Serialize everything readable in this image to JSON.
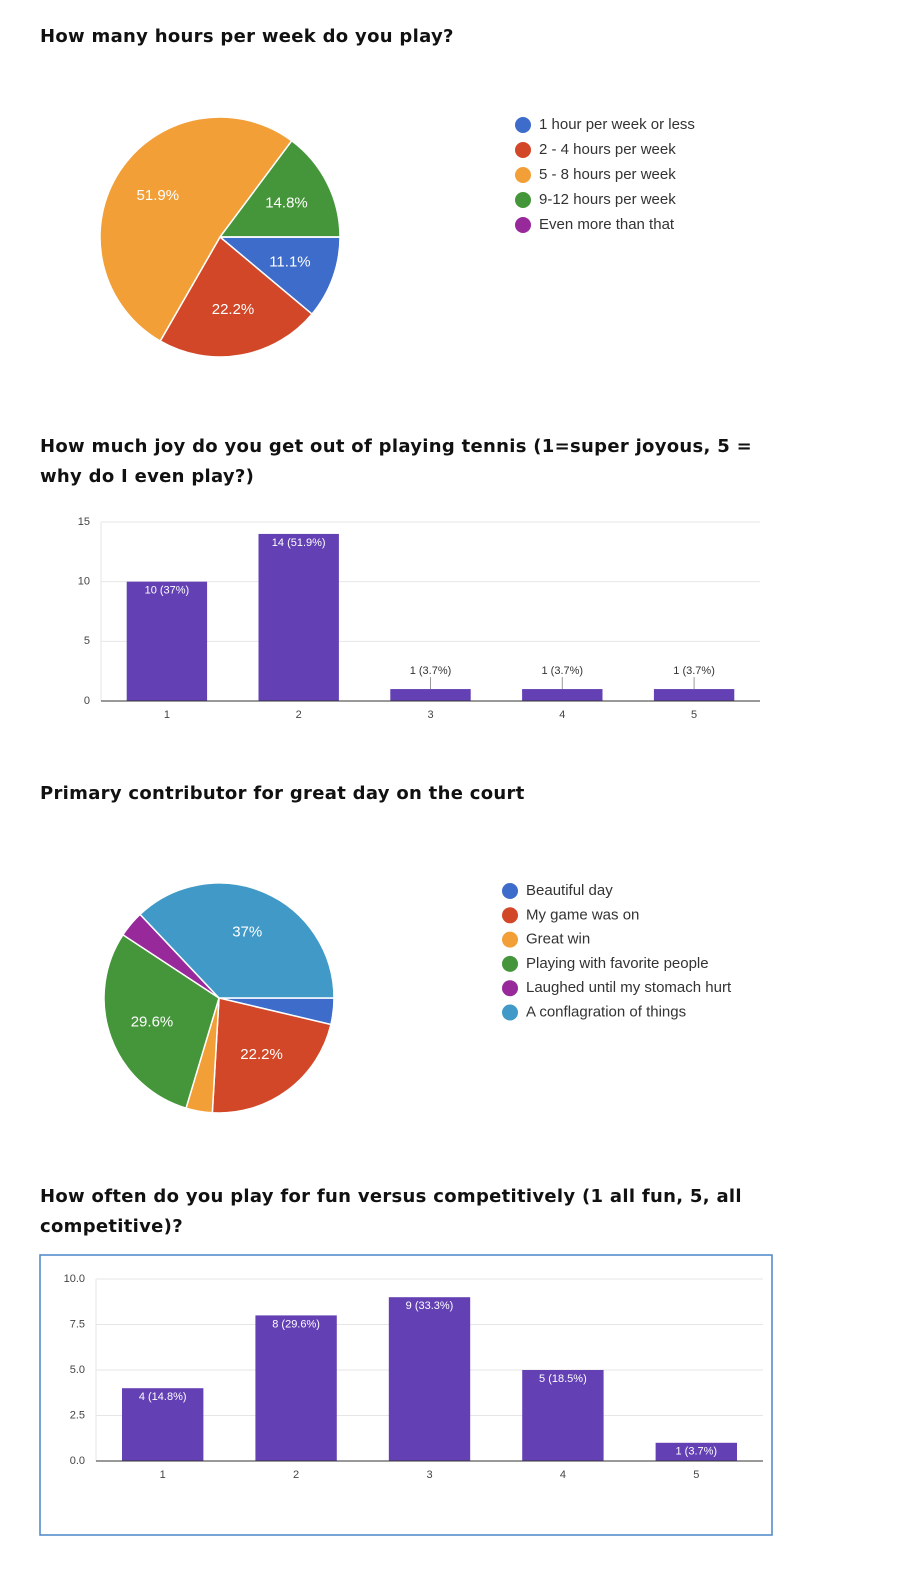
{
  "chart_data": [
    {
      "type": "pie",
      "title": "How many hours per week do you play?",
      "categories": [
        "1 hour per week or less",
        "2 - 4 hours per week",
        "5 - 8 hours per week",
        "9-12 hours per week",
        "Even more than that"
      ],
      "values": [
        11.1,
        22.2,
        51.9,
        14.8,
        0
      ],
      "value_labels": [
        "11.1%",
        "22.2%",
        "51.9%",
        "14.8%",
        null
      ],
      "colors": [
        "#3d6ccb",
        "#d24727",
        "#f29f38",
        "#45963a",
        "#98299b"
      ]
    },
    {
      "type": "bar",
      "title": "How much joy do you get out of playing tennis (1=super joyous, 5 = why do I even play?)",
      "categories": [
        "1",
        "2",
        "3",
        "4",
        "5"
      ],
      "values": [
        10,
        14,
        1,
        1,
        1
      ],
      "value_labels": [
        "10 (37%)",
        "14 (51.9%)",
        "1 (3.7%)",
        "1 (3.7%)",
        "1 (3.7%)"
      ],
      "color": "#6340b4",
      "ylim": [
        0,
        15
      ],
      "yticks": [
        0,
        5,
        10,
        15
      ],
      "grid": true
    },
    {
      "type": "pie",
      "title": "Primary contributor for great day on the court",
      "categories": [
        "Beautiful day",
        "My game was on",
        "Great win",
        "Playing with favorite people",
        "Laughed until my stomach hurt",
        "A conflagration of things"
      ],
      "values": [
        3.7,
        22.2,
        3.7,
        29.6,
        3.7,
        37
      ],
      "value_labels": [
        null,
        "22.2%",
        null,
        "29.6%",
        null,
        "37%"
      ],
      "colors": [
        "#3d6ccb",
        "#d24727",
        "#f29f38",
        "#45963a",
        "#98299b",
        "#4099c6"
      ]
    },
    {
      "type": "bar",
      "title": "How often do you play for fun versus competitively (1 all fun, 5, all competitive)?",
      "categories": [
        "1",
        "2",
        "3",
        "4",
        "5"
      ],
      "values": [
        4,
        8,
        9,
        5,
        1
      ],
      "value_labels": [
        "4 (14.8%)",
        "8 (29.6%)",
        "9 (33.3%)",
        "5 (18.5%)",
        "1 (3.7%)"
      ],
      "color": "#6340b4",
      "ylim": [
        0,
        10
      ],
      "yticks": [
        {
          "value": 0,
          "label": "0.0"
        },
        {
          "value": 2.5,
          "label": "2.5"
        },
        {
          "value": 5,
          "label": "5.0"
        },
        {
          "value": 7.5,
          "label": "7.5"
        },
        {
          "value": 10,
          "label": "10.0"
        }
      ],
      "grid": true
    }
  ]
}
